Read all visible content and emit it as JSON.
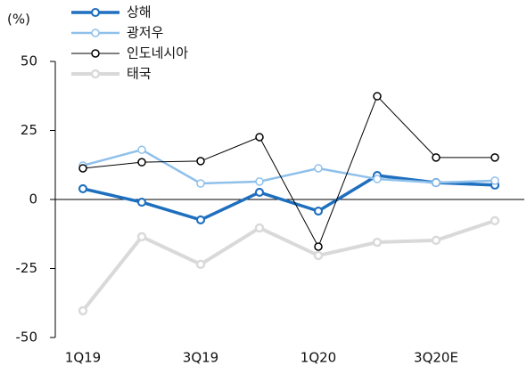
{
  "chart_data": {
    "type": "line",
    "y_label": "(%)",
    "categories": [
      "1Q19",
      null,
      "3Q19",
      null,
      "1Q20",
      null,
      "3Q20E",
      null
    ],
    "series": [
      {
        "name": "상해",
        "color": "#1f6fbf",
        "width": 3.5,
        "values": [
          3.9,
          -1,
          -7.4,
          2.6,
          -4.2,
          8.7,
          6.1,
          5.2
        ]
      },
      {
        "name": "광저우",
        "color": "#8fc0ea",
        "width": 2.5,
        "values": [
          12.3,
          18,
          5.8,
          6.5,
          11.3,
          7.4,
          6.1,
          6.8
        ]
      },
      {
        "name": "인도네시아",
        "color": "#000000",
        "width": 1,
        "values": [
          11.3,
          13.5,
          13.9,
          22.6,
          -17.1,
          37.4,
          15.2,
          15.2
        ]
      },
      {
        "name": "태국",
        "color": "#d9d9d9",
        "width": 4,
        "values": [
          -40.3,
          -13.5,
          -23.5,
          -10.3,
          -20.3,
          -15.5,
          -14.8,
          -7.7
        ]
      }
    ],
    "ylim": [
      -50,
      50
    ],
    "yticks": [
      50,
      25,
      0,
      -25,
      -50
    ]
  }
}
